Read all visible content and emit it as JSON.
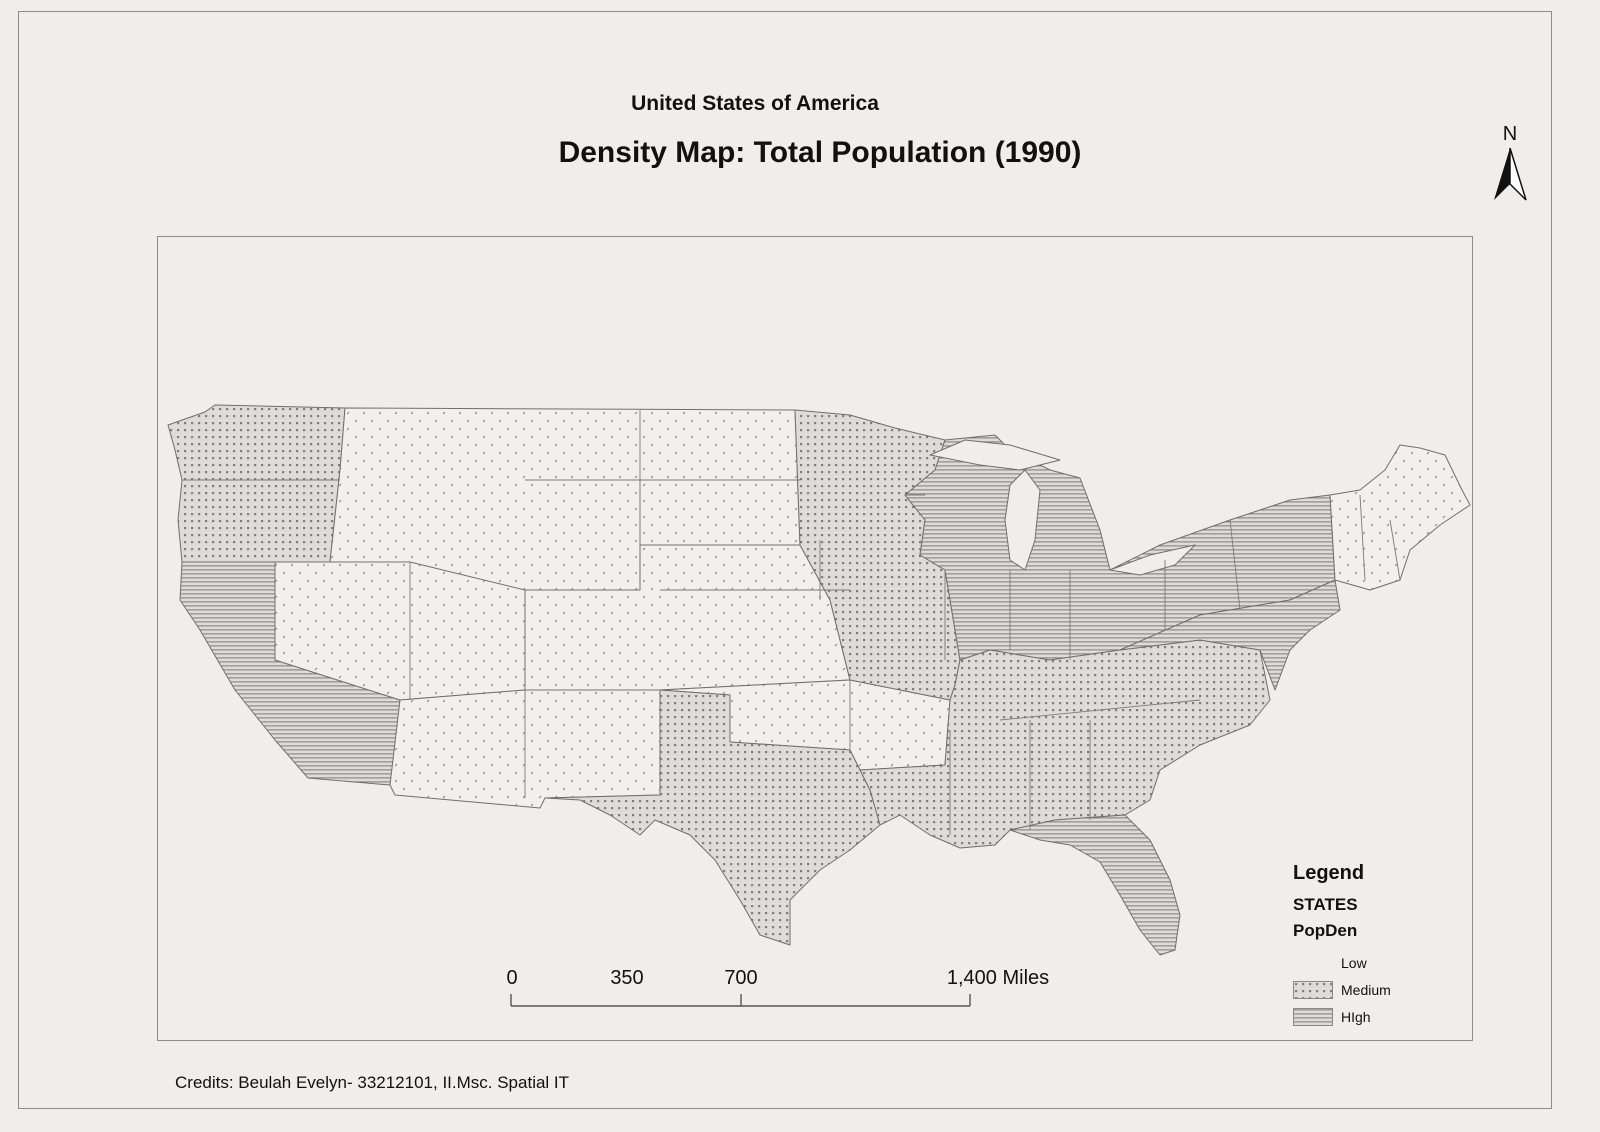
{
  "header": {
    "subtitle": "United States of America",
    "title": "Density Map: Total Population (1990)"
  },
  "north_arrow": {
    "label": "N"
  },
  "scale_bar": {
    "ticks": [
      "0",
      "350",
      "700",
      "1,400 Miles"
    ]
  },
  "legend": {
    "title": "Legend",
    "layer": "STATES",
    "field": "PopDen",
    "classes": [
      {
        "label": "Low",
        "pattern": "none"
      },
      {
        "label": "Medium",
        "pattern": "dots"
      },
      {
        "label": "HIgh",
        "pattern": "lines"
      }
    ]
  },
  "credits": "Credits: Beulah Evelyn- 33212101, II.Msc. Spatial IT",
  "colors": {
    "background": "#efeeed",
    "state_fill": "#dcdad7",
    "border": "#6f6f6f",
    "frame": "#8c8c8c"
  },
  "map": {
    "regions": [
      {
        "name": "west-coast-north",
        "class": "Medium"
      },
      {
        "name": "mountain-northwest",
        "class": "Low"
      },
      {
        "name": "california",
        "class": "HIgh"
      },
      {
        "name": "nevada",
        "class": "Low"
      },
      {
        "name": "southwest",
        "class": "Low"
      },
      {
        "name": "great-plains",
        "class": "Low"
      },
      {
        "name": "oklahoma-kansas-region",
        "class": "Low"
      },
      {
        "name": "texas",
        "class": "Medium"
      },
      {
        "name": "upper-midwest",
        "class": "Medium"
      },
      {
        "name": "great-lakes",
        "class": "HIgh"
      },
      {
        "name": "southeast",
        "class": "Medium"
      },
      {
        "name": "florida",
        "class": "HIgh"
      },
      {
        "name": "mid-atlantic",
        "class": "HIgh"
      },
      {
        "name": "new-england",
        "class": "Low"
      }
    ]
  }
}
